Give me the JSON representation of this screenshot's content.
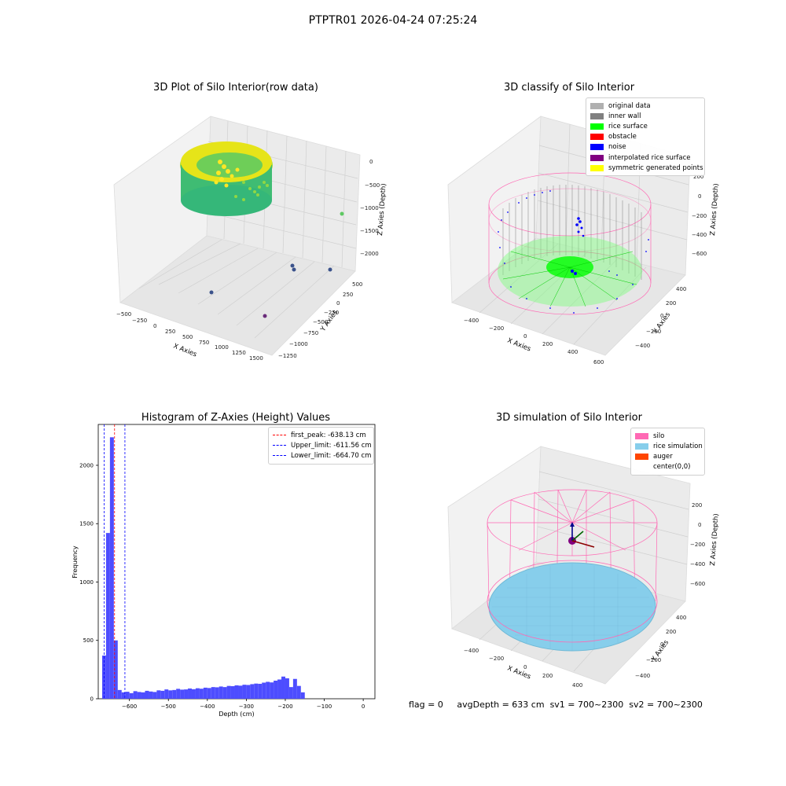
{
  "suptitle": "PTPTR01 2026-04-24 07:25:24",
  "colors": {
    "original_data": "#b0b0b0",
    "inner_wall": "#808080",
    "rice_surface": "#00ff00",
    "obstacle": "#ff0000",
    "noise": "#0000ff",
    "interpolated_rice_surface": "#800080",
    "symmetric_generated_points": "#ffff00",
    "silo": "#ff69b4",
    "rice_simulation": "#87ceeb",
    "auger": "#ff4500",
    "histogram_bar": "#4d4dff",
    "first_peak_line": "#ff0000",
    "limit_line": "#0000ff"
  },
  "chart_data": [
    {
      "type": "scatter",
      "title": "3D Plot of Silo Interior(row data)",
      "xlabel": "X Axies",
      "ylabel": "Y Axies",
      "zlabel": "Z Axies (Depth)",
      "xticks": [
        "−500",
        "−250",
        "0",
        "250",
        "500",
        "750",
        "1000",
        "1250",
        "1500"
      ],
      "yticks": [
        "500",
        "250",
        "0",
        "−250",
        "−500",
        "−750",
        "−1000",
        "−1250"
      ],
      "zticks": [
        "0",
        "−500",
        "−1000",
        "−1500",
        "−2000"
      ],
      "outliers": [
        {
          "x": 1400,
          "y": 450,
          "z": -1850
        },
        {
          "x": 1050,
          "y": 180,
          "z": -1950
        },
        {
          "x": 950,
          "y": 150,
          "z": -1950
        },
        {
          "x": 350,
          "y": -1050,
          "z": -1750
        },
        {
          "x": 1250,
          "y": -900,
          "z": -2050
        },
        {
          "x": 1400,
          "y": 600,
          "z": -1050
        }
      ]
    },
    {
      "type": "scatter",
      "title": "3D classify of Silo Interior",
      "xlabel": "X Axies",
      "ylabel": "Y Axies",
      "zlabel": "Z Axies (Depth)",
      "xticks": [
        "−400",
        "−200",
        "0",
        "200",
        "400",
        "600"
      ],
      "yticks": [
        "400",
        "200",
        "0",
        "−200",
        "−400"
      ],
      "zticks": [
        "200",
        "0",
        "−200",
        "−400",
        "−600"
      ],
      "legend": [
        "original data",
        "inner wall",
        "rice surface",
        "obstacle",
        "noise",
        "interpolated rice surface",
        "symmetric generated points"
      ]
    },
    {
      "type": "bar",
      "title": "Histogram of Z-Axies (Height) Values",
      "xlabel": "Depth (cm)",
      "ylabel": "Frequency",
      "xlim": [
        -680,
        30
      ],
      "ylim": [
        0,
        2350
      ],
      "xticks": [
        -600,
        -500,
        -400,
        -300,
        -200,
        -100,
        0
      ],
      "yticks": [
        0,
        500,
        1000,
        1500,
        2000
      ],
      "bin_width": 10,
      "bin_start": -670,
      "values": [
        370,
        1420,
        2240,
        500,
        75,
        55,
        60,
        48,
        65,
        58,
        55,
        68,
        62,
        58,
        72,
        68,
        80,
        72,
        75,
        85,
        78,
        80,
        88,
        82,
        90,
        86,
        95,
        92,
        100,
        98,
        105,
        100,
        110,
        108,
        115,
        112,
        120,
        118,
        125,
        130,
        128,
        138,
        145,
        140,
        155,
        165,
        190,
        175,
        100,
        170,
        110,
        55
      ],
      "vlines": [
        {
          "label": "first_peak: -638.13 cm",
          "value": -638.13,
          "color": "#ff0000"
        },
        {
          "label": "Upper_limit: -611.56 cm",
          "value": -611.56,
          "color": "#0000ff"
        },
        {
          "label": "Lower_limit: -664.70 cm",
          "value": -664.7,
          "color": "#0000ff"
        }
      ]
    },
    {
      "type": "area",
      "title": "3D simulation of Silo Interior",
      "xlabel": "X Axies",
      "ylabel": "Y Axies",
      "zlabel": "Z Axies (Depth)",
      "xticks": [
        "−400",
        "−200",
        "0",
        "200",
        "400"
      ],
      "yticks": [
        "400",
        "200",
        "0",
        "−200",
        "−400"
      ],
      "zticks": [
        "200",
        "0",
        "−200",
        "−400",
        "−600"
      ],
      "legend": [
        "silo",
        "rice simulation",
        "auger",
        "center(0,0)"
      ]
    }
  ],
  "footer": {
    "flag": "flag = 0",
    "avg_depth": "avgDepth = 633 cm",
    "sv1": "sv1 = 700~2300",
    "sv2": "sv2 = 700~2300"
  }
}
